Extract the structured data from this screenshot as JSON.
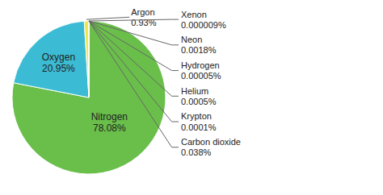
{
  "chart_data": {
    "type": "pie",
    "categories": [
      "Nitrogen",
      "Oxygen",
      "Argon",
      "Carbon dioxide",
      "Krypton",
      "Helium",
      "Hydrogen",
      "Neon",
      "Xenon"
    ],
    "values": [
      78.08,
      20.95,
      0.93,
      0.038,
      0.0001,
      0.0005,
      5e-05,
      0.0018,
      9e-06
    ],
    "value_labels": [
      "78.08%",
      "20.95%",
      "0.93%",
      "0.038%",
      "0.0001%",
      "0.0005%",
      "0.00005%",
      "0.0018%",
      "0.000009%"
    ],
    "colors": [
      "#6abf4b",
      "#3bbcd4",
      "#f0e84a",
      "#6abf4b",
      "#6abf4b",
      "#6abf4b",
      "#6abf4b",
      "#6abf4b",
      "#6abf4b"
    ],
    "data_labels": true
  }
}
